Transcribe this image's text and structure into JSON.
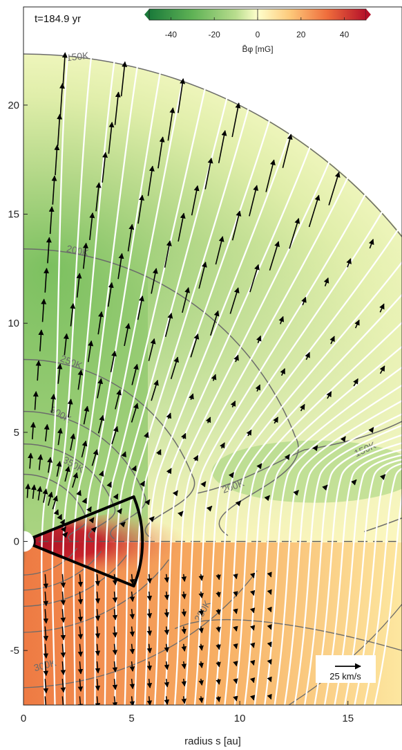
{
  "time_label": "t=184.9 yr",
  "colorbar": {
    "label": "B̄φ [mG]",
    "ticks": [
      "-40",
      "-20",
      "0",
      "20",
      "40"
    ],
    "tick_values": [
      -40,
      -20,
      0,
      20,
      40
    ],
    "range": [
      -50,
      50
    ],
    "colors": [
      "#1a7a3a",
      "#5fb255",
      "#b9dd8e",
      "#ffffcc",
      "#fdc97a",
      "#ef6d3c",
      "#b5102a"
    ]
  },
  "vector_scale_label": "25 km/s",
  "chart_data": {
    "type": "heatmap",
    "title": "",
    "xlabel": "radius  s [au]",
    "ylabel": "",
    "xlim": [
      0,
      17.5
    ],
    "ylim": [
      -7.5,
      24.5
    ],
    "x_ticks": [
      0,
      5,
      10,
      15
    ],
    "x_tick_labels": [
      "0",
      "5",
      "10",
      "15"
    ],
    "y_ticks": [
      -5,
      0,
      5,
      10,
      15,
      20
    ],
    "y_tick_labels": [
      "-5",
      "0",
      "5",
      "10",
      "15",
      "20"
    ],
    "domain_outer_radius_au": 22.5,
    "midplane_y": 0,
    "temperature_contours": [
      {
        "label": "150K",
        "value": 150
      },
      {
        "label": "200K",
        "value": 200
      },
      {
        "label": "250K",
        "value": 250
      },
      {
        "label": "300K",
        "value": 300
      },
      {
        "label": "350K",
        "value": 350
      }
    ],
    "wedge": {
      "r_inner": 0.5,
      "r_outer": 5.5,
      "half_angle_deg": 22
    },
    "colors": {
      "field_lines": "#ffffff",
      "arrows": "#000000",
      "contours": "#6b6b6b",
      "wedge": "#000000"
    }
  }
}
